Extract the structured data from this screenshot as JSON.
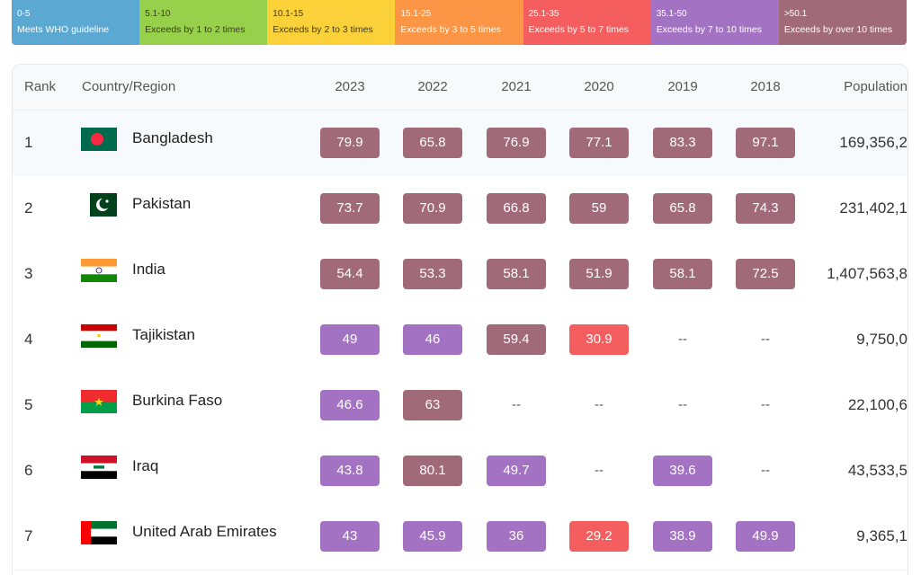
{
  "legend": [
    {
      "range": "0-5",
      "label": "Meets WHO guideline",
      "color": "#5ba8d2",
      "dark": false
    },
    {
      "range": "5.1-10",
      "label": "Exceeds by 1 to 2 times",
      "color": "#97d14b",
      "dark": true
    },
    {
      "range": "10.1-15",
      "label": "Exceeds by 2 to 3 times",
      "color": "#fbd13a",
      "dark": true
    },
    {
      "range": "15.1-25",
      "label": "Exceeds by 3 to 5 times",
      "color": "#fc9545",
      "dark": false
    },
    {
      "range": "25.1-35",
      "label": "Exceeds by 5 to 7 times",
      "color": "#f45e5e",
      "dark": false
    },
    {
      "range": "35.1-50",
      "label": "Exceeds by 7 to 10 times",
      "color": "#a472c3",
      "dark": false
    },
    {
      "range": ">50.1",
      "label": "Exceeds by over 10 times",
      "color": "#a06a79",
      "dark": false
    }
  ],
  "table": {
    "headers": {
      "rank": "Rank",
      "country": "Country/Region",
      "years": [
        "2023",
        "2022",
        "2021",
        "2020",
        "2019",
        "2018"
      ],
      "population": "Population"
    },
    "rows": [
      {
        "rank": "1",
        "country": "Bangladesh",
        "flag": "bangladesh-flag-icon",
        "values": [
          "79.9",
          "65.8",
          "76.9",
          "77.1",
          "83.3",
          "97.1"
        ],
        "population": "169,356,2"
      },
      {
        "rank": "2",
        "country": "Pakistan",
        "flag": "pakistan-flag-icon",
        "values": [
          "73.7",
          "70.9",
          "66.8",
          "59",
          "65.8",
          "74.3"
        ],
        "population": "231,402,1"
      },
      {
        "rank": "3",
        "country": "India",
        "flag": "india-flag-icon",
        "values": [
          "54.4",
          "53.3",
          "58.1",
          "51.9",
          "58.1",
          "72.5"
        ],
        "population": "1,407,563,8"
      },
      {
        "rank": "4",
        "country": "Tajikistan",
        "flag": "tajikistan-flag-icon",
        "values": [
          "49",
          "46",
          "59.4",
          "30.9",
          "--",
          "--"
        ],
        "population": "9,750,0"
      },
      {
        "rank": "5",
        "country": "Burkina Faso",
        "flag": "burkina-faso-flag-icon",
        "values": [
          "46.6",
          "63",
          "--",
          "--",
          "--",
          "--"
        ],
        "population": "22,100,6"
      },
      {
        "rank": "6",
        "country": "Iraq",
        "flag": "iraq-flag-icon",
        "values": [
          "43.8",
          "80.1",
          "49.7",
          "--",
          "39.6",
          "--"
        ],
        "population": "43,533,5"
      },
      {
        "rank": "7",
        "country": "United Arab Emirates",
        "flag": "uae-flag-icon",
        "values": [
          "43",
          "45.9",
          "36",
          "29.2",
          "38.9",
          "49.9"
        ],
        "population": "9,365,1"
      }
    ]
  },
  "colors": {
    "over_50": "#a06a79",
    "35_50": "#a472c3",
    "25_35": "#f45e5e",
    "15_25": "#fc9545",
    "10_15": "#fbd13a",
    "5_10": "#97d14b",
    "0_5": "#5ba8d2"
  }
}
